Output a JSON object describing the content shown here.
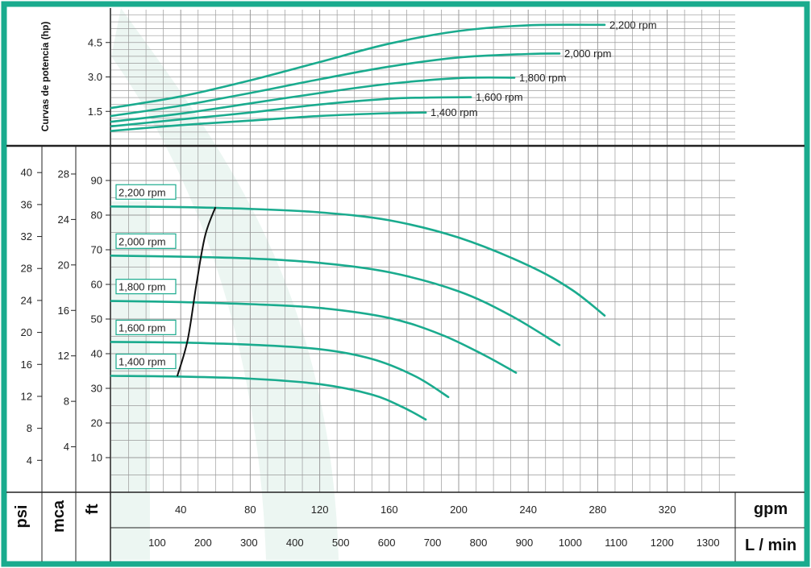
{
  "chart_data": {
    "type": "line",
    "colors": {
      "curve": "#1aab8e",
      "frame": "#1aab8e",
      "grid": "#9a9a9a",
      "npsh": "#111111"
    },
    "power_panel": {
      "axis_title": "Curvas de potencia (hp)",
      "ticks": [
        1.5,
        3.0,
        4.5
      ],
      "tick_labels": [
        "1.5",
        "3.0",
        "4.5"
      ],
      "ylim": [
        0,
        5.4
      ],
      "series": [
        {
          "name": "2,200 rpm",
          "points": [
            [
              0,
              1.65
            ],
            [
              40,
              2.15
            ],
            [
              80,
              2.85
            ],
            [
              120,
              3.65
            ],
            [
              160,
              4.45
            ],
            [
              200,
              5.0
            ],
            [
              240,
              5.25
            ],
            [
              284,
              5.27
            ]
          ]
        },
        {
          "name": "2,000 rpm",
          "points": [
            [
              0,
              1.3
            ],
            [
              40,
              1.75
            ],
            [
              80,
              2.3
            ],
            [
              120,
              2.9
            ],
            [
              160,
              3.45
            ],
            [
              200,
              3.85
            ],
            [
              240,
              4.0
            ],
            [
              258,
              4.02
            ]
          ]
        },
        {
          "name": "1,800 rpm",
          "points": [
            [
              0,
              1.05
            ],
            [
              40,
              1.4
            ],
            [
              80,
              1.85
            ],
            [
              120,
              2.3
            ],
            [
              160,
              2.7
            ],
            [
              200,
              2.95
            ],
            [
              232,
              2.97
            ]
          ]
        },
        {
          "name": "1,600 rpm",
          "points": [
            [
              0,
              0.85
            ],
            [
              40,
              1.15
            ],
            [
              80,
              1.45
            ],
            [
              120,
              1.8
            ],
            [
              160,
              2.05
            ],
            [
              180,
              2.1
            ],
            [
              207,
              2.12
            ]
          ]
        },
        {
          "name": "1,400 rpm",
          "points": [
            [
              0,
              0.65
            ],
            [
              40,
              0.9
            ],
            [
              80,
              1.1
            ],
            [
              120,
              1.3
            ],
            [
              160,
              1.42
            ],
            [
              181,
              1.45
            ]
          ]
        }
      ]
    },
    "head_panel": {
      "axes": {
        "psi": {
          "label": "psi",
          "ticks": [
            4,
            8,
            12,
            16,
            20,
            24,
            28,
            32,
            36,
            40
          ]
        },
        "mca": {
          "label": "mca",
          "ticks": [
            4,
            8,
            12,
            16,
            20,
            24,
            28
          ]
        },
        "ft": {
          "label": "ft",
          "ticks": [
            10,
            20,
            30,
            40,
            50,
            60,
            70,
            80,
            90
          ]
        }
      },
      "series": [
        {
          "name": "2,200 rpm",
          "points": [
            [
              0,
              82.5
            ],
            [
              40,
              82.3
            ],
            [
              80,
              81.8
            ],
            [
              120,
              80.8
            ],
            [
              160,
              78.5
            ],
            [
              200,
              73.5
            ],
            [
              240,
              65.5
            ],
            [
              265,
              58.5
            ],
            [
              284,
              51
            ]
          ]
        },
        {
          "name": "2,000 rpm",
          "points": [
            [
              0,
              68.3
            ],
            [
              40,
              68.0
            ],
            [
              80,
              67.5
            ],
            [
              120,
              66.2
            ],
            [
              160,
              63.5
            ],
            [
              200,
              58
            ],
            [
              230,
              51
            ],
            [
              258,
              42.5
            ]
          ]
        },
        {
          "name": "1,800 rpm",
          "points": [
            [
              0,
              55.2
            ],
            [
              40,
              54.9
            ],
            [
              80,
              54.3
            ],
            [
              120,
              53.2
            ],
            [
              160,
              50.3
            ],
            [
              190,
              45.5
            ],
            [
              215,
              39.5
            ],
            [
              233,
              34.5
            ]
          ]
        },
        {
          "name": "1,600 rpm",
          "points": [
            [
              0,
              43.4
            ],
            [
              40,
              43.2
            ],
            [
              80,
              42.6
            ],
            [
              120,
              41.3
            ],
            [
              150,
              38.5
            ],
            [
              175,
              33.5
            ],
            [
              194,
              27.5
            ]
          ]
        },
        {
          "name": "1,400 rpm",
          "points": [
            [
              0,
              33.6
            ],
            [
              40,
              33.4
            ],
            [
              80,
              32.8
            ],
            [
              120,
              31.2
            ],
            [
              150,
              28.2
            ],
            [
              168,
              24.5
            ],
            [
              181,
              21
            ]
          ]
        }
      ],
      "npsh_line": [
        [
          38,
          33.5
        ],
        [
          44,
          44
        ],
        [
          49,
          60
        ],
        [
          54,
          74
        ],
        [
          60,
          82.3
        ]
      ]
    },
    "x_axes": {
      "gpm": {
        "label": "gpm",
        "ticks": [
          40,
          80,
          120,
          160,
          200,
          240,
          280,
          320
        ],
        "range": [
          0,
          360
        ]
      },
      "lmin": {
        "label": "L / min",
        "ticks": [
          100,
          200,
          300,
          400,
          500,
          600,
          700,
          800,
          900,
          1000,
          1100,
          1200,
          1300
        ]
      }
    }
  }
}
